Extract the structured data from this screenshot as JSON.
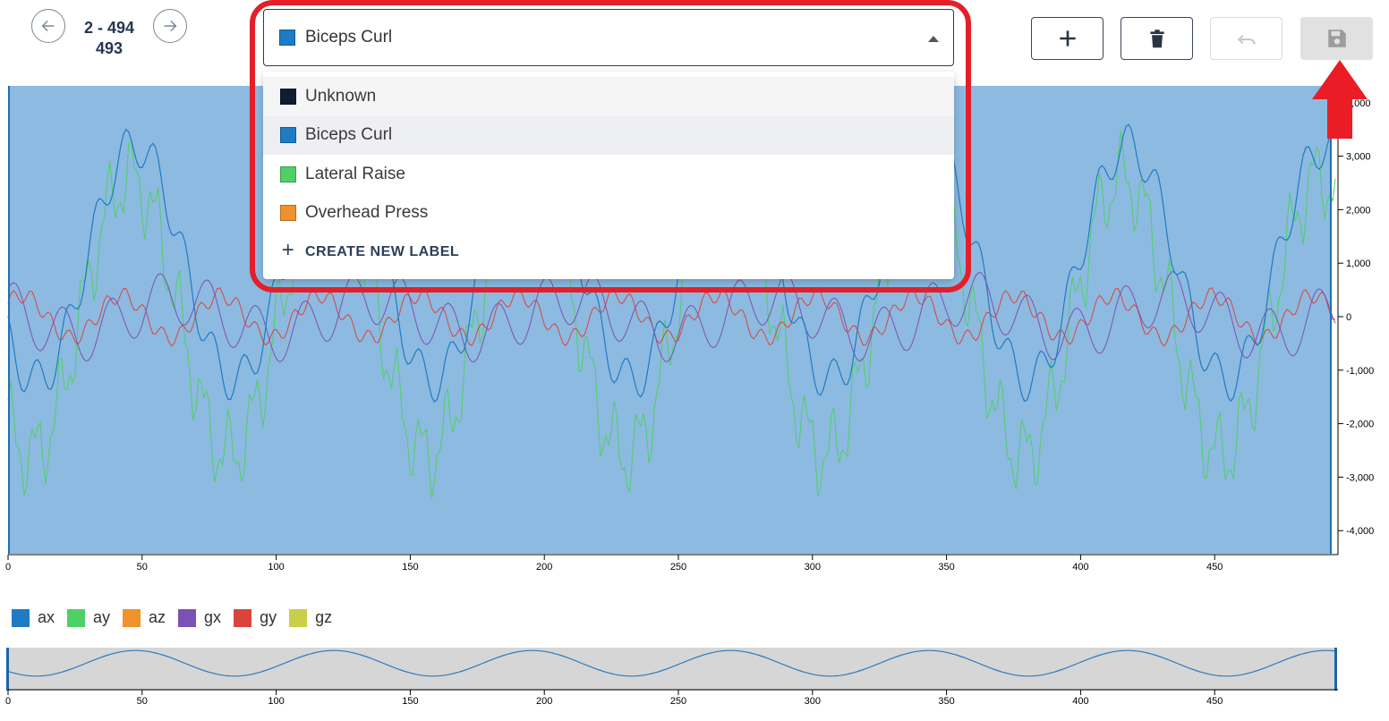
{
  "navigation": {
    "range_start_end": "2 - 494",
    "range_count": "493",
    "prev_icon": "arrow-left-icon",
    "next_icon": "arrow-right-icon"
  },
  "label_select": {
    "selected": {
      "label": "Biceps Curl",
      "color": "#1f7bc4"
    },
    "options": [
      {
        "label": "Unknown",
        "color": "#0d1e33"
      },
      {
        "label": "Biceps Curl",
        "color": "#1f7bc4"
      },
      {
        "label": "Lateral Raise",
        "color": "#4fd067"
      },
      {
        "label": "Overhead Press",
        "color": "#f0922b"
      }
    ],
    "create_label": "CREATE NEW LABEL"
  },
  "toolbar": {
    "add_icon": "plus-icon",
    "delete_icon": "trash-icon",
    "undo_icon": "undo-icon",
    "save_icon": "save-icon"
  },
  "colors": {
    "label_fill": "#8dbae0",
    "highlight": "#e3202a",
    "axis": "#000000"
  },
  "main_chart": {
    "x_ticks": [
      "0",
      "50",
      "100",
      "150",
      "200",
      "250",
      "300",
      "350",
      "400",
      "450"
    ],
    "y_ticks": [
      "4,000",
      "3,000",
      "2,000",
      "1,000",
      "0",
      "-1,000",
      "-2,000",
      "-3,000",
      "-4,000"
    ]
  },
  "legend": [
    {
      "name": "ax",
      "color": "#1f7bc4"
    },
    {
      "name": "ay",
      "color": "#4fd067"
    },
    {
      "name": "az",
      "color": "#f0922b"
    },
    {
      "name": "gx",
      "color": "#7a52b3"
    },
    {
      "name": "gy",
      "color": "#d9453d"
    },
    {
      "name": "gz",
      "color": "#c9cf4a"
    }
  ],
  "overview_chart": {
    "x_ticks": [
      "0",
      "50",
      "100",
      "150",
      "200",
      "250",
      "300",
      "350",
      "400",
      "450"
    ]
  }
}
